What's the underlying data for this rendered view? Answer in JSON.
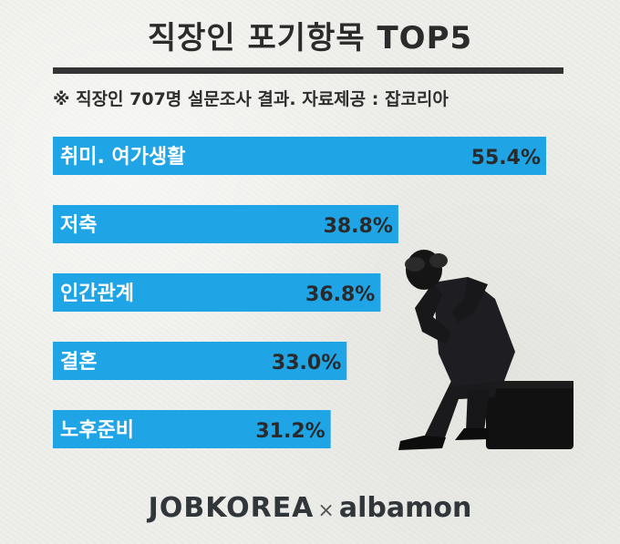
{
  "title": "직장인 포기항목 TOP5",
  "subtitle": "※ 직장인 707명 설문조사 결과. 자료제공 : 잡코리아",
  "logo": {
    "left": "JOBKOREA",
    "separator": "×",
    "right": "albamon"
  },
  "colors": {
    "bar": "#1fa4e6",
    "text": "#2a2a2a",
    "background": "#eeeeea"
  },
  "chart_data": {
    "type": "bar",
    "orientation": "horizontal",
    "title": "직장인 포기항목 TOP5",
    "categories": [
      "취미. 여가생활",
      "저축",
      "인간관계",
      "결혼",
      "노후준비"
    ],
    "values": [
      55.4,
      38.8,
      36.8,
      33.0,
      31.2
    ],
    "value_labels": [
      "55.4%",
      "38.8%",
      "36.8%",
      "33.0%",
      "31.2%"
    ],
    "unit": "%"
  }
}
